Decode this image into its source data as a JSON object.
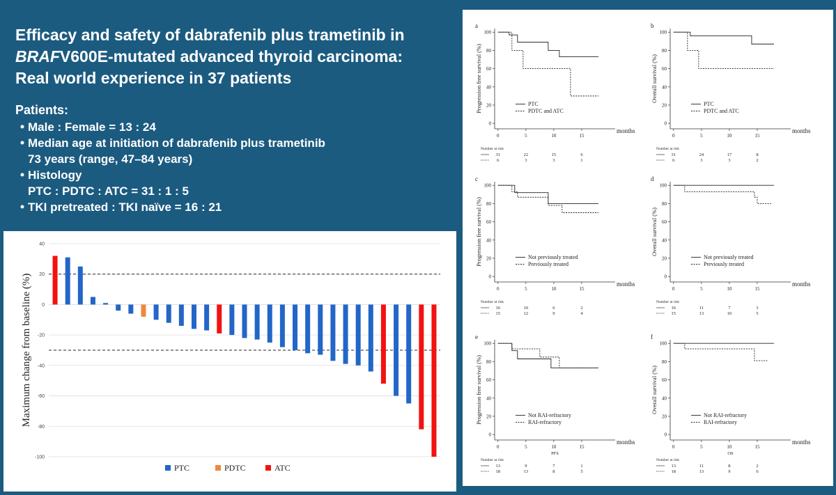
{
  "header": {
    "title_line1": "Efficacy and safety of dabrafenib plus trametinib in",
    "title_line2_italic": "BRAF",
    "title_line2_rest": "V600E-mutated advanced thyroid carcinoma:",
    "title_line3": "Real world experience in 37 patients"
  },
  "patients": {
    "heading": "Patients:",
    "items": [
      [
        "Male : Female = 13 : 24"
      ],
      [
        "Median age at initiation of dabrafenib plus trametinib",
        "73 years (range, 47–84 years)"
      ],
      [
        "Histology",
        "PTC : PDTC : ATC = 31 : 1 : 5"
      ],
      [
        "TKI pretreated : TKI naïve = 16 : 21"
      ]
    ]
  },
  "chart_data": [
    {
      "type": "bar",
      "ylabel": "Maximum change from baseline (%)",
      "categories": [
        null,
        null,
        null,
        null,
        null,
        null,
        null,
        null,
        null,
        null,
        null,
        null,
        null,
        null,
        null,
        null,
        null,
        null,
        null,
        null,
        null,
        null,
        null,
        null,
        null,
        null,
        null,
        null,
        null,
        null,
        null
      ],
      "series": [
        {
          "name": "PTC",
          "color": "#2266c8",
          "values": [
            null,
            31,
            25,
            5,
            1,
            -4,
            -6,
            null,
            -10,
            -12,
            -14,
            -16,
            -17,
            null,
            -20,
            -22,
            -23,
            -25,
            -28,
            -30,
            -32,
            -33,
            -37,
            -39,
            -40,
            -44,
            null,
            -60,
            -65,
            null,
            null
          ]
        },
        {
          "name": "PDTC",
          "color": "#f0883c",
          "values": [
            null,
            null,
            null,
            null,
            null,
            null,
            null,
            -8,
            null,
            null,
            null,
            null,
            null,
            null,
            null,
            null,
            null,
            null,
            null,
            null,
            null,
            null,
            null,
            null,
            null,
            null,
            null,
            null,
            null,
            null,
            null
          ]
        },
        {
          "name": "ATC",
          "color": "#f21212",
          "values": [
            32,
            null,
            null,
            null,
            null,
            null,
            null,
            null,
            null,
            null,
            null,
            null,
            null,
            -19,
            null,
            null,
            null,
            null,
            null,
            null,
            null,
            null,
            null,
            null,
            null,
            null,
            -52,
            null,
            null,
            -82,
            -100
          ]
        }
      ],
      "ylim": [
        -100,
        40
      ],
      "yticks": [
        40,
        20,
        0,
        -20,
        -40,
        -60,
        -80,
        -100
      ],
      "reference_lines": [
        20,
        -30
      ],
      "grid": true,
      "legend": "bottom"
    },
    {
      "type": "line",
      "step": true,
      "title": "a",
      "ylabel": "Progression free survival (%)",
      "xlabel": "months",
      "xlim": [
        -0.6,
        21
      ],
      "ylim": [
        -6,
        104
      ],
      "xticks": [
        0,
        5,
        10,
        15
      ],
      "yticks": [
        0,
        20,
        40,
        60,
        80,
        100
      ],
      "series": [
        {
          "name": "PTC",
          "color": "#222222",
          "style": "solid",
          "x": [
            0,
            2,
            3.5,
            9,
            11,
            18
          ],
          "values": [
            100,
            97,
            89,
            80,
            73,
            73
          ]
        },
        {
          "name": "PDTC and ATC",
          "color": "#222222",
          "style": "dotted",
          "x": [
            0,
            2.5,
            4.5,
            13,
            18
          ],
          "values": [
            100,
            80,
            60,
            30,
            30
          ]
        }
      ],
      "risk_table": {
        "label": "Number at risk",
        "rows": [
          [
            31,
            22,
            15,
            6
          ],
          [
            6,
            3,
            3,
            1
          ]
        ]
      }
    },
    {
      "type": "line",
      "step": true,
      "title": "b",
      "ylabel": "Overall survival (%)",
      "xlabel": "months",
      "xlim": [
        -0.6,
        21
      ],
      "ylim": [
        -6,
        104
      ],
      "xticks": [
        0,
        5,
        10,
        15
      ],
      "yticks": [
        0,
        20,
        40,
        60,
        80,
        100
      ],
      "series": [
        {
          "name": "PTC",
          "color": "#222222",
          "style": "solid",
          "x": [
            0,
            3,
            14,
            18
          ],
          "values": [
            100,
            96,
            87,
            87
          ]
        },
        {
          "name": "PDTC and ATC",
          "color": "#222222",
          "style": "dotted",
          "x": [
            0,
            2.5,
            4.5,
            18
          ],
          "values": [
            100,
            80,
            60,
            60
          ]
        }
      ],
      "risk_table": {
        "label": "Number at risk",
        "rows": [
          [
            31,
            24,
            17,
            8
          ],
          [
            6,
            3,
            3,
            2
          ]
        ]
      }
    },
    {
      "type": "line",
      "step": true,
      "title": "c",
      "ylabel": "Progression free survival (%)",
      "xlabel": "months",
      "xlim": [
        -0.6,
        21
      ],
      "ylim": [
        -6,
        104
      ],
      "xticks": [
        0,
        5,
        10,
        15
      ],
      "yticks": [
        0,
        20,
        40,
        60,
        80,
        100
      ],
      "series": [
        {
          "name": "Not previously treated",
          "color": "#222222",
          "style": "solid",
          "x": [
            0,
            3,
            9,
            18
          ],
          "values": [
            100,
            92,
            80,
            80
          ]
        },
        {
          "name": "Previously treated",
          "color": "#222222",
          "style": "dotted",
          "x": [
            0,
            2.5,
            3.5,
            9,
            11.5,
            18
          ],
          "values": [
            100,
            93,
            87,
            78,
            70,
            70
          ]
        }
      ],
      "risk_table": {
        "label": "Number at risk",
        "rows": [
          [
            16,
            10,
            6,
            2
          ],
          [
            15,
            12,
            9,
            4
          ]
        ]
      }
    },
    {
      "type": "line",
      "step": true,
      "title": "d",
      "ylabel": "Overall survival (%)",
      "xlabel": "months",
      "xlim": [
        -0.6,
        21
      ],
      "ylim": [
        -6,
        104
      ],
      "xticks": [
        0,
        5,
        10,
        15
      ],
      "yticks": [
        0,
        20,
        40,
        60,
        80,
        100
      ],
      "series": [
        {
          "name": "Not previously treated",
          "color": "#222222",
          "style": "solid",
          "x": [
            0,
            18
          ],
          "values": [
            100,
            100
          ]
        },
        {
          "name": "Previously treated",
          "color": "#222222",
          "style": "dotted",
          "x": [
            0,
            2,
            14.5,
            15,
            17.5
          ],
          "values": [
            100,
            93,
            87,
            80,
            80
          ]
        }
      ],
      "risk_table": {
        "label": "Number at risk",
        "rows": [
          [
            16,
            11,
            7,
            3
          ],
          [
            15,
            13,
            10,
            5
          ]
        ]
      }
    },
    {
      "type": "line",
      "step": true,
      "title": "e",
      "ylabel": "Progression free survival (%)",
      "xlabel": "months",
      "xaxis_caption": "PFS",
      "xlim": [
        -0.6,
        21
      ],
      "ylim": [
        -6,
        104
      ],
      "xticks": [
        0,
        5,
        10,
        15
      ],
      "yticks": [
        0,
        20,
        40,
        60,
        80,
        100
      ],
      "series": [
        {
          "name": "Not RAI-refractory",
          "color": "#222222",
          "style": "solid",
          "x": [
            0,
            2.5,
            3.5,
            9.5,
            18
          ],
          "values": [
            100,
            92,
            83,
            73,
            73
          ]
        },
        {
          "name": "RAI-refractory",
          "color": "#222222",
          "style": "dotted",
          "x": [
            0,
            2.5,
            7.5,
            11,
            18
          ],
          "values": [
            100,
            94,
            85,
            73,
            73
          ]
        }
      ],
      "risk_table": {
        "label": "Number at risk",
        "rows": [
          [
            13,
            9,
            7,
            1
          ],
          [
            18,
            13,
            8,
            5
          ]
        ]
      }
    },
    {
      "type": "line",
      "step": true,
      "title": "f",
      "ylabel": "Overall survival (%)",
      "xlabel": "months",
      "xaxis_caption": "OS",
      "xlim": [
        -0.6,
        21
      ],
      "ylim": [
        -6,
        104
      ],
      "xticks": [
        0,
        5,
        10,
        15
      ],
      "yticks": [
        0,
        20,
        40,
        60,
        80,
        100
      ],
      "series": [
        {
          "name": "Not RAI-refractory",
          "color": "#222222",
          "style": "solid",
          "x": [
            0,
            18
          ],
          "values": [
            100,
            100
          ]
        },
        {
          "name": "RAI-refractory",
          "color": "#222222",
          "style": "dotted",
          "x": [
            0,
            2,
            14.5,
            17
          ],
          "values": [
            100,
            94,
            81,
            81
          ]
        }
      ],
      "risk_table": {
        "label": "Number at risk",
        "rows": [
          [
            13,
            11,
            8,
            2
          ],
          [
            18,
            13,
            9,
            6
          ]
        ]
      }
    }
  ]
}
